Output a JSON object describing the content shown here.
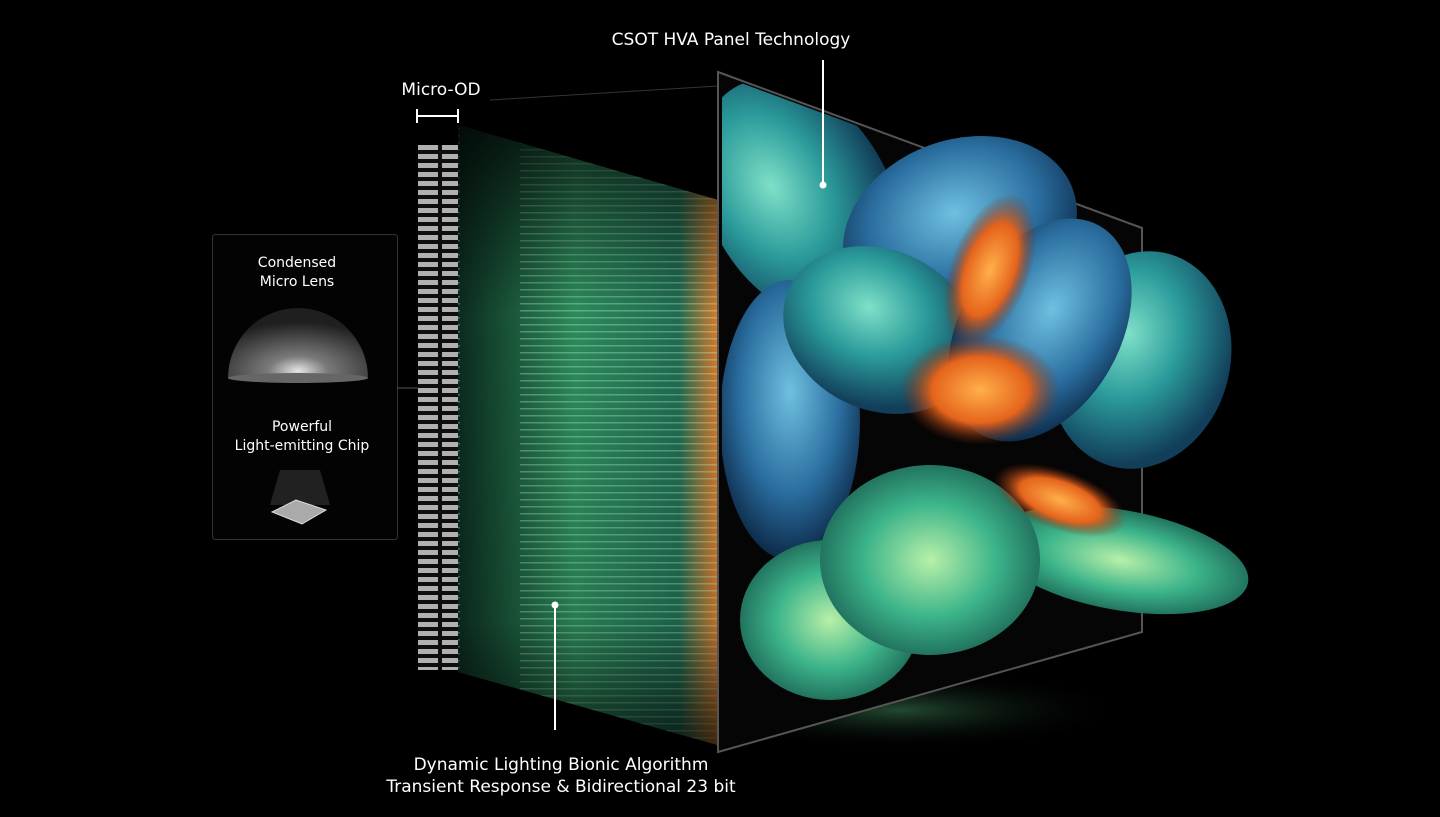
{
  "labels": {
    "panel": "CSOT HVA Panel Technology",
    "micro_od": "Micro-OD",
    "lens": [
      "Condensed",
      "Micro Lens"
    ],
    "chip": [
      "Powerful",
      "Light-emitting Chip"
    ],
    "algorithm": [
      "Dynamic Lighting Bionic Algorithm",
      "Transient Response & Bidirectional 23 bit"
    ]
  }
}
